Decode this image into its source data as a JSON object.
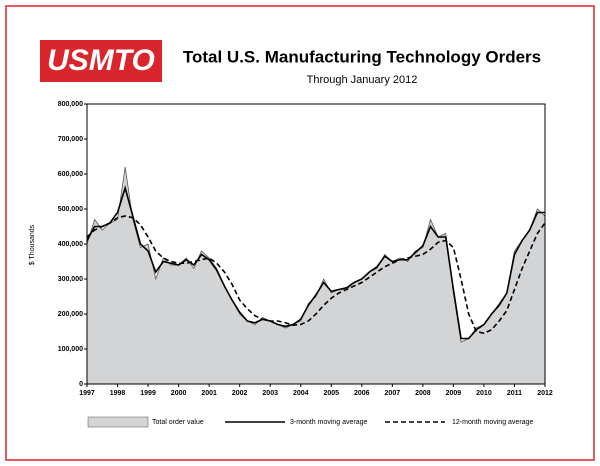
{
  "chart_data": {
    "type": "line",
    "logo": "USMTO",
    "title": "Total U.S. Manufacturing Technology Orders",
    "subtitle": "Through January 2012",
    "y_label": "$ Thousands",
    "xlim": [
      1997,
      2012
    ],
    "xticks": [
      1997,
      1998,
      1999,
      2000,
      2001,
      2002,
      2003,
      2004,
      2005,
      2006,
      2007,
      2008,
      2009,
      2010,
      2011,
      2012
    ],
    "ylim": [
      0,
      800000
    ],
    "yticks": [
      0,
      {
        "value": 100000,
        "label": "100,000"
      },
      {
        "value": 200000,
        "label": "200,000"
      },
      {
        "value": 300000,
        "label": "300,000"
      },
      {
        "value": 400000,
        "label": "400,000"
      },
      {
        "value": 500000,
        "label": "500,000"
      },
      {
        "value": 600000,
        "label": "600,000"
      },
      {
        "value": 700000,
        "label": "700,000"
      },
      {
        "value": 800000,
        "label": "800,000"
      }
    ],
    "grid": false,
    "x": [
      1997,
      1997.25,
      1997.5,
      1997.75,
      1998,
      1998.25,
      1998.5,
      1998.75,
      1999,
      1999.25,
      1999.5,
      1999.75,
      2000,
      2000.25,
      2000.5,
      2000.75,
      2001,
      2001.25,
      2001.5,
      2001.75,
      2002,
      2002.25,
      2002.5,
      2002.75,
      2003,
      2003.25,
      2003.5,
      2003.75,
      2004,
      2004.25,
      2004.5,
      2004.75,
      2005,
      2005.25,
      2005.5,
      2005.75,
      2006,
      2006.25,
      2006.5,
      2006.75,
      2007,
      2007.25,
      2007.5,
      2007.75,
      2008,
      2008.25,
      2008.5,
      2008.75,
      2009,
      2009.25,
      2009.5,
      2009.75,
      2010,
      2010.25,
      2010.5,
      2010.75,
      2011,
      2011.25,
      2011.5,
      2011.75,
      2012
    ],
    "series": [
      {
        "name": "Total order value",
        "kind": "area",
        "color": "#d3d4d6",
        "line_color": "#555555",
        "values": [
          400000,
          470000,
          440000,
          460000,
          470000,
          620000,
          470000,
          390000,
          400000,
          300000,
          360000,
          340000,
          340000,
          360000,
          330000,
          380000,
          360000,
          330000,
          280000,
          240000,
          200000,
          180000,
          170000,
          190000,
          180000,
          170000,
          160000,
          170000,
          180000,
          230000,
          250000,
          300000,
          260000,
          270000,
          270000,
          290000,
          300000,
          320000,
          330000,
          370000,
          350000,
          360000,
          350000,
          380000,
          390000,
          470000,
          420000,
          430000,
          260000,
          120000,
          130000,
          160000,
          170000,
          200000,
          230000,
          260000,
          380000,
          410000,
          440000,
          500000,
          480000
        ]
      },
      {
        "name": "3-month moving average",
        "kind": "line",
        "color": "#000000",
        "dash": false,
        "values": [
          410000,
          450000,
          450000,
          460000,
          490000,
          560000,
          480000,
          400000,
          380000,
          320000,
          350000,
          345000,
          340000,
          355000,
          340000,
          370000,
          355000,
          325000,
          280000,
          240000,
          205000,
          180000,
          175000,
          185000,
          180000,
          170000,
          165000,
          170000,
          185000,
          225000,
          255000,
          290000,
          265000,
          270000,
          275000,
          290000,
          300000,
          320000,
          335000,
          365000,
          350000,
          355000,
          355000,
          375000,
          395000,
          450000,
          420000,
          420000,
          270000,
          130000,
          130000,
          155000,
          170000,
          200000,
          225000,
          260000,
          370000,
          410000,
          440000,
          490000,
          490000
        ]
      },
      {
        "name": "12-month moving average",
        "kind": "line",
        "color": "#000000",
        "dash": true,
        "values": [
          420000,
          440000,
          450000,
          460000,
          475000,
          480000,
          475000,
          455000,
          420000,
          380000,
          360000,
          350000,
          345000,
          345000,
          350000,
          355000,
          360000,
          345000,
          320000,
          285000,
          240000,
          215000,
          195000,
          185000,
          180000,
          180000,
          175000,
          168000,
          170000,
          180000,
          200000,
          225000,
          245000,
          260000,
          270000,
          280000,
          290000,
          305000,
          320000,
          335000,
          345000,
          355000,
          360000,
          365000,
          370000,
          385000,
          405000,
          410000,
          390000,
          300000,
          200000,
          150000,
          145000,
          155000,
          180000,
          210000,
          270000,
          330000,
          380000,
          430000,
          460000
        ]
      }
    ]
  }
}
